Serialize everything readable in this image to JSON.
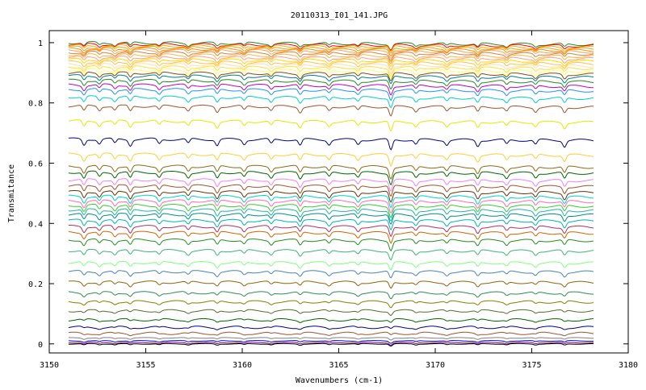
{
  "chart_data": {
    "type": "line",
    "title": "20110313_I01_141.JPG",
    "xlabel": "Wavenumbers (cm-1)",
    "ylabel": "Transmitance",
    "xlim": [
      3150,
      3180
    ],
    "ylim": [
      -0.03,
      1.04
    ],
    "xticks": [
      3150,
      3155,
      3160,
      3165,
      3170,
      3175,
      3180
    ],
    "yticks": [
      0,
      0.2,
      0.4,
      0.6,
      0.8,
      1
    ],
    "ytick_labels": [
      "0",
      "0.2",
      "0.4",
      "0.6",
      "0.8",
      "1"
    ],
    "grid": false,
    "legend": "none",
    "x_range_data": [
      3151,
      3178.2
    ],
    "absorption_line_positions": [
      3151.8,
      3152.6,
      3153.4,
      3154.2,
      3155.7,
      3157.2,
      3158.7,
      3160.1,
      3161.5,
      3163.0,
      3164.5,
      3166.0,
      3167.7,
      3169.0,
      3170.6,
      3172.2,
      3173.7,
      3175.2,
      3176.7
    ],
    "series": [
      {
        "baseline": 1.0,
        "color": "#228b22"
      },
      {
        "baseline": 0.995,
        "color": "#ff0000"
      },
      {
        "baseline": 0.99,
        "color": "#ffa500"
      },
      {
        "baseline": 0.985,
        "color": "#daa520"
      },
      {
        "baseline": 0.98,
        "color": "#ff8c00"
      },
      {
        "baseline": 0.975,
        "color": "#f4a460"
      },
      {
        "baseline": 0.968,
        "color": "#cd853f"
      },
      {
        "baseline": 0.96,
        "color": "#ffb347"
      },
      {
        "baseline": 0.952,
        "color": "#ffa07a"
      },
      {
        "baseline": 0.944,
        "color": "#ffd700"
      },
      {
        "baseline": 0.936,
        "color": "#ffc04c"
      },
      {
        "baseline": 0.928,
        "color": "#ffdead"
      },
      {
        "baseline": 0.92,
        "color": "#ffe135"
      },
      {
        "baseline": 0.91,
        "color": "#ffff66"
      },
      {
        "baseline": 0.9,
        "color": "#8b4513"
      },
      {
        "baseline": 0.89,
        "color": "#008080"
      },
      {
        "baseline": 0.875,
        "color": "#228b22"
      },
      {
        "baseline": 0.86,
        "color": "#c000c0"
      },
      {
        "baseline": 0.845,
        "color": "#1e90ff"
      },
      {
        "baseline": 0.82,
        "color": "#00cccc"
      },
      {
        "baseline": 0.79,
        "color": "#a0522d"
      },
      {
        "baseline": 0.74,
        "color": "#e6e600"
      },
      {
        "baseline": 0.68,
        "color": "#000080"
      },
      {
        "baseline": 0.63,
        "color": "#ffcc33"
      },
      {
        "baseline": 0.59,
        "color": "#8b6914"
      },
      {
        "baseline": 0.57,
        "color": "#006400"
      },
      {
        "baseline": 0.545,
        "color": "#ee82ee"
      },
      {
        "baseline": 0.525,
        "color": "#a0522d"
      },
      {
        "baseline": 0.505,
        "color": "#663300"
      },
      {
        "baseline": 0.49,
        "color": "#00ced1"
      },
      {
        "baseline": 0.475,
        "color": "#ff69b4"
      },
      {
        "baseline": 0.46,
        "color": "#32cd32"
      },
      {
        "baseline": 0.445,
        "color": "#20b2aa"
      },
      {
        "baseline": 0.43,
        "color": "#008b8b"
      },
      {
        "baseline": 0.41,
        "color": "#00b3b3"
      },
      {
        "baseline": 0.39,
        "color": "#b03060"
      },
      {
        "baseline": 0.37,
        "color": "#cc6600"
      },
      {
        "baseline": 0.345,
        "color": "#228b22"
      },
      {
        "baseline": 0.31,
        "color": "#3cb371"
      },
      {
        "baseline": 0.27,
        "color": "#7fff7f"
      },
      {
        "baseline": 0.24,
        "color": "#4682b4"
      },
      {
        "baseline": 0.205,
        "color": "#8b6508"
      },
      {
        "baseline": 0.17,
        "color": "#2e8b57"
      },
      {
        "baseline": 0.14,
        "color": "#808000"
      },
      {
        "baseline": 0.11,
        "color": "#556b2f"
      },
      {
        "baseline": 0.08,
        "color": "#006400"
      },
      {
        "baseline": 0.055,
        "color": "#000080"
      },
      {
        "baseline": 0.035,
        "color": "#a0522d"
      },
      {
        "baseline": 0.02,
        "color": "#808080"
      },
      {
        "baseline": 0.01,
        "color": "#0000cd"
      },
      {
        "baseline": 0.004,
        "color": "#800080"
      },
      {
        "baseline": 0.0,
        "color": "#000000"
      }
    ]
  }
}
